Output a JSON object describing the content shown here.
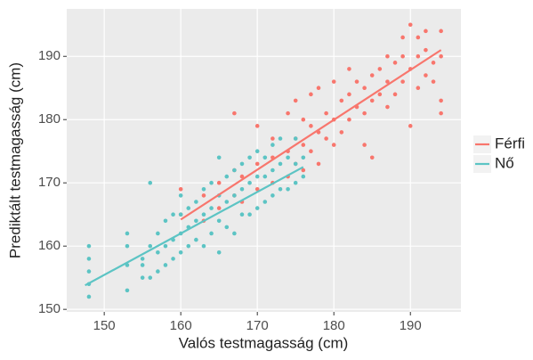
{
  "chart_data": {
    "type": "scatter",
    "x_label": "Valós testmagasság (cm)",
    "y_label": "Prediktált testmagasság (cm)",
    "xlim": [
      145.1,
      196.6
    ],
    "ylim": [
      149.6,
      197.5
    ],
    "xticks": [
      150,
      160,
      170,
      180,
      190
    ],
    "yticks": [
      150,
      160,
      170,
      180,
      190
    ],
    "grid": true,
    "legend": "right",
    "series": [
      {
        "name": "Férfi",
        "color": "#f8766d",
        "x": [
          160,
          160,
          163,
          163,
          165,
          165,
          167,
          167,
          167,
          168,
          168,
          170,
          170,
          170,
          172,
          172,
          172,
          174,
          174,
          174,
          175,
          175,
          175,
          176,
          176,
          176,
          177,
          177,
          177,
          178,
          178,
          178,
          179,
          179,
          180,
          180,
          180,
          181,
          181,
          182,
          182,
          182,
          183,
          183,
          184,
          184,
          184,
          185,
          185,
          185,
          186,
          186,
          187,
          187,
          187,
          188,
          188,
          189,
          189,
          189,
          190,
          190,
          190,
          191,
          191,
          191,
          192,
          192,
          192,
          193,
          193,
          194,
          194,
          194,
          194
        ],
        "values": [
          165,
          169,
          164,
          168,
          166,
          170,
          168,
          172,
          181,
          167,
          171,
          169,
          173,
          179,
          170,
          174,
          177,
          171,
          175,
          181,
          173,
          177,
          183,
          172,
          176,
          180,
          175,
          179,
          184,
          173,
          178,
          185,
          177,
          181,
          176,
          180,
          186,
          178,
          183,
          180,
          184,
          188,
          182,
          186,
          176,
          181,
          185,
          174,
          183,
          187,
          184,
          188,
          182,
          186,
          190,
          184,
          189,
          186,
          190,
          193,
          179,
          188,
          195,
          185,
          190,
          193,
          187,
          191,
          194,
          186,
          189,
          181,
          183,
          190,
          194
        ],
        "fit_x": [
          160,
          194
        ],
        "fit_y": [
          164.2,
          191
        ]
      },
      {
        "name": "Nő",
        "color": "#5cc4c4",
        "x": [
          148,
          148,
          148,
          148,
          148,
          153,
          153,
          153,
          153,
          155,
          155,
          155,
          156,
          156,
          156,
          157,
          157,
          157,
          158,
          158,
          158,
          159,
          159,
          159,
          160,
          160,
          160,
          160,
          161,
          161,
          161,
          162,
          162,
          162,
          163,
          163,
          163,
          164,
          164,
          164,
          165,
          165,
          165,
          165,
          166,
          166,
          166,
          167,
          167,
          167,
          168,
          168,
          168,
          169,
          169,
          169,
          170,
          170,
          170,
          171,
          171,
          171,
          172,
          172,
          172,
          173,
          173,
          173,
          174,
          174,
          175,
          175,
          175,
          176,
          176
        ],
        "values": [
          152,
          154,
          156,
          158,
          160,
          153,
          157,
          160,
          162,
          155,
          158,
          157,
          155,
          160,
          170,
          156,
          159,
          162,
          157,
          160,
          164,
          158,
          161,
          165,
          159,
          162,
          165,
          168,
          160,
          163,
          166,
          161,
          164,
          167,
          160,
          165,
          169,
          162,
          166,
          170,
          159,
          164,
          168,
          174,
          163,
          167,
          171,
          162,
          168,
          172,
          165,
          169,
          173,
          165,
          170,
          174,
          166,
          171,
          175,
          167,
          171,
          174,
          168,
          172,
          176,
          169,
          173,
          177,
          169,
          174,
          170,
          173,
          177,
          171,
          174
        ],
        "fit_x": [
          147.5,
          176
        ],
        "fit_y": [
          153.8,
          172.5
        ]
      }
    ]
  }
}
